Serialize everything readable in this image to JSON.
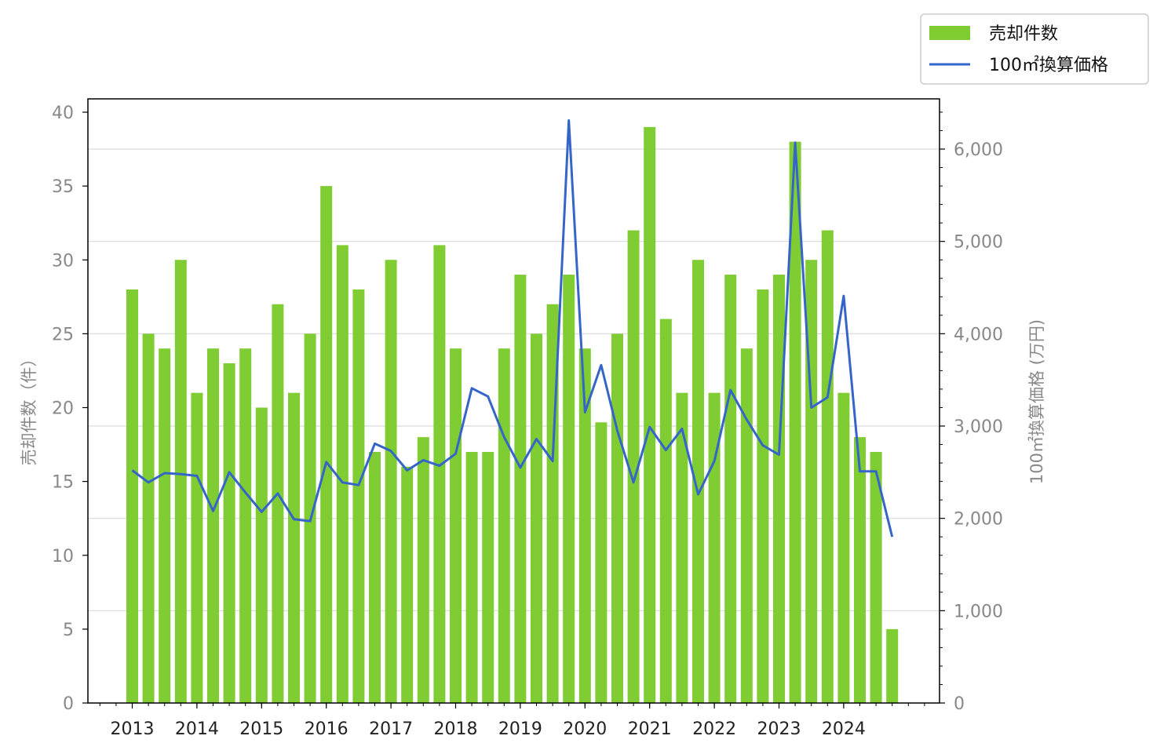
{
  "chart_data": {
    "type": "bar+line",
    "title": "",
    "ylabel_left": "売却件数（件）",
    "ylabel_right": "100㎡換算価格 (万円)",
    "ylim_left": [
      0,
      40
    ],
    "ylim_right": [
      0,
      6400
    ],
    "left_ticks": [
      "0",
      "5",
      "10",
      "15",
      "20",
      "25",
      "30",
      "35",
      "40"
    ],
    "right_ticks": [
      "0",
      "1,000",
      "2,000",
      "3,000",
      "4,000",
      "5,000",
      "6,000"
    ],
    "year_labels": [
      "2013",
      "2014",
      "2015",
      "2016",
      "2017",
      "2018",
      "2019",
      "2020",
      "2021",
      "2022",
      "2023",
      "2024"
    ],
    "grid": "horizontal (right axis)",
    "legend_placement": "top-right",
    "series": [
      {
        "name": "売却件数",
        "type": "bar",
        "axis": "left",
        "color": "#7fcc33",
        "values": [
          28,
          25,
          24,
          30,
          21,
          24,
          23,
          24,
          20,
          27,
          21,
          25,
          35,
          31,
          28,
          17,
          30,
          16,
          18,
          31,
          24,
          17,
          17,
          24,
          29,
          25,
          27,
          29,
          24,
          19,
          25,
          32,
          39,
          26,
          21,
          30,
          21,
          29,
          24,
          28,
          29,
          38,
          30,
          32,
          21,
          18,
          17,
          5
        ]
      },
      {
        "name": "100㎡換算価格",
        "type": "line",
        "axis": "right",
        "color": "#3565c8",
        "values": [
          2520,
          2390,
          2490,
          2480,
          2460,
          2080,
          2500,
          2280,
          2070,
          2270,
          1990,
          1970,
          2610,
          2390,
          2360,
          2810,
          2730,
          2520,
          2630,
          2570,
          2700,
          3410,
          3320,
          2880,
          2550,
          2860,
          2620,
          6310,
          3150,
          3660,
          2950,
          2390,
          2990,
          2740,
          2970,
          2260,
          2620,
          3390,
          3070,
          2790,
          2690,
          6070,
          3200,
          3310,
          4410,
          2510,
          2510,
          1800
        ]
      }
    ]
  }
}
